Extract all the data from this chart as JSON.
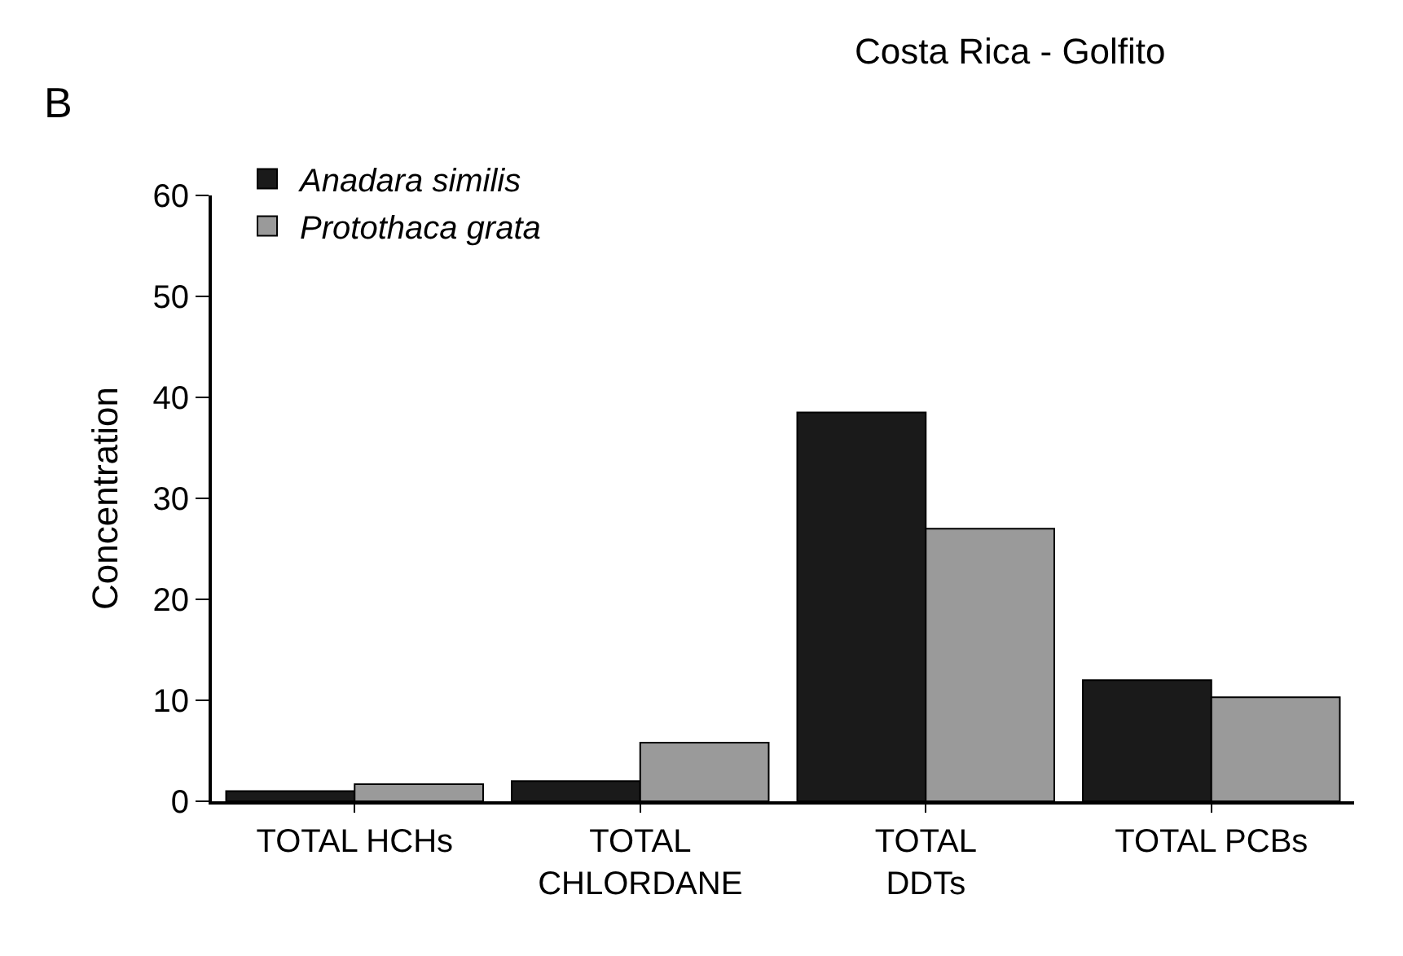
{
  "chart_data": {
    "type": "bar",
    "title": "Costa Rica - Golfito",
    "ylabel": "Concentration",
    "categories": [
      "TOTAL HCHs",
      "TOTAL\nCHLORDANE",
      "TOTAL\nDDTs",
      "TOTAL PCBs"
    ],
    "series": [
      {
        "name": "Anadara similis",
        "color": "#1a1a1a",
        "values": [
          1,
          2,
          38.5,
          12
        ]
      },
      {
        "name": "Protothaca grata",
        "color": "#9a9a9a",
        "values": [
          1.7,
          5.8,
          27,
          10.3
        ]
      }
    ],
    "ylim": [
      0,
      60
    ],
    "yticks": [
      0,
      10,
      20,
      30,
      40,
      50,
      60
    ],
    "legend": "top left",
    "annotations": [
      "B"
    ]
  }
}
